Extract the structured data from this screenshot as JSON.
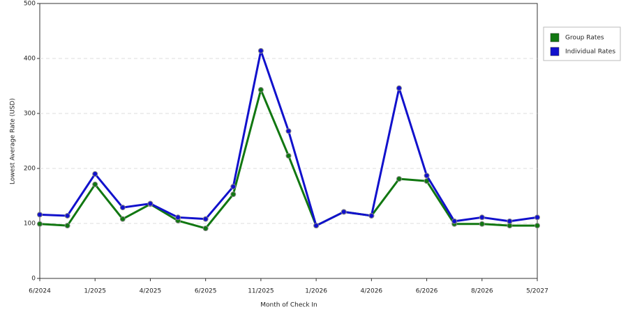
{
  "chart_data": {
    "type": "line",
    "x_label": "Month of Check In",
    "y_label": "Lowest Average Rate (USD)",
    "categories": [
      "6/2024",
      null,
      "1/2025",
      null,
      "4/2025",
      null,
      "6/2025",
      null,
      "11/2025",
      null,
      "1/2026",
      null,
      "4/2026",
      null,
      "6/2026",
      null,
      "8/2026",
      null,
      "5/2027"
    ],
    "series": [
      {
        "name": "Group Rates",
        "color": "#117711",
        "values": [
          99,
          96,
          171,
          108,
          135,
          105,
          91,
          153,
          343,
          223,
          96,
          121,
          114,
          181,
          177,
          99,
          99,
          96,
          96
        ]
      },
      {
        "name": "Individual Rates",
        "color": "#1111cc",
        "values": [
          116,
          114,
          190,
          129,
          136,
          111,
          108,
          167,
          414,
          268,
          96,
          121,
          114,
          346,
          187,
          104,
          111,
          104,
          111
        ]
      }
    ],
    "ylim": [
      0,
      500
    ],
    "yticks": [
      0,
      100,
      200,
      300,
      400,
      500
    ],
    "grid": true,
    "legend": "right"
  }
}
